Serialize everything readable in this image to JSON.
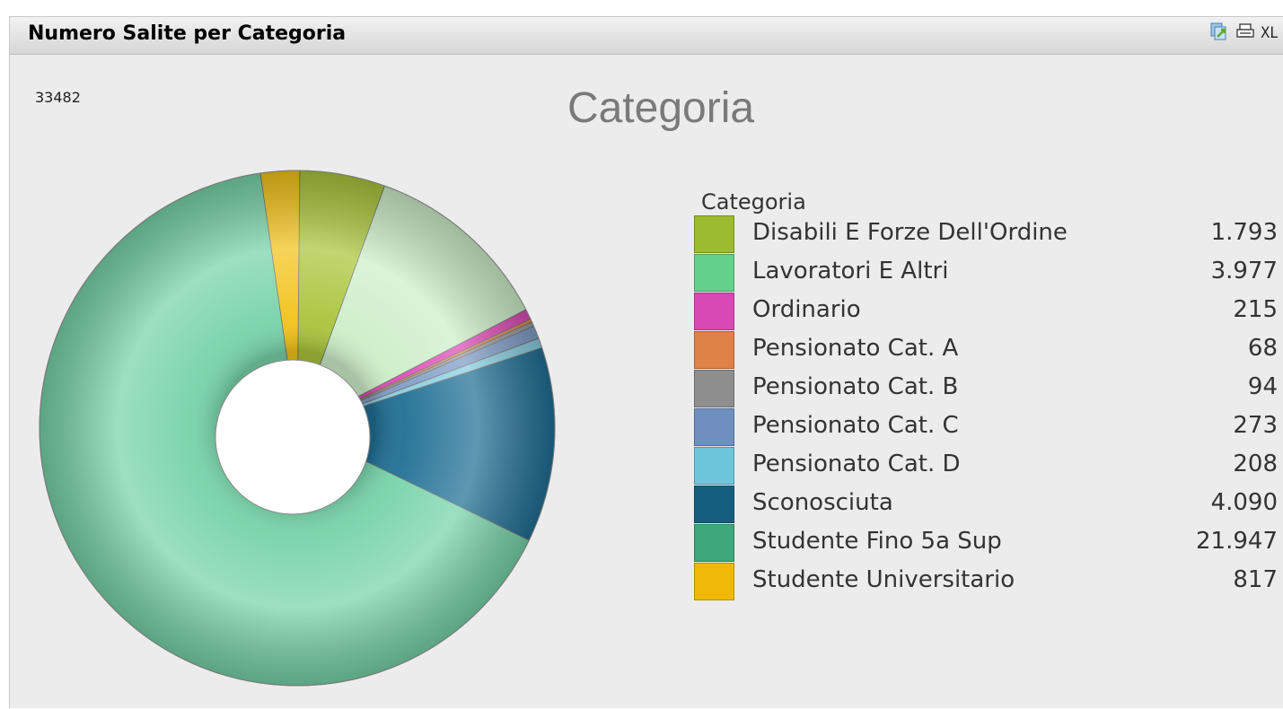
{
  "header": {
    "title": "Numero Salite per Categoria",
    "icons": [
      "restore-icon",
      "print-icon",
      "excel-export-icon"
    ],
    "xl_label": "XL"
  },
  "total_label": "33482",
  "chart_data": {
    "type": "pie",
    "title": "Categoria",
    "legend_title": "Categoria",
    "legend_position": "right",
    "categories": [
      "Disabili E Forze Dell'Ordine",
      "Lavoratori E Altri",
      "Ordinario",
      "Pensionato Cat. A",
      "Pensionato Cat. B",
      "Pensionato Cat. C",
      "Pensionato Cat. D",
      "Sconosciuta",
      "Studente Fino 5a Sup",
      "Studente Universitario"
    ],
    "values": [
      1793,
      3977,
      215,
      68,
      94,
      273,
      208,
      4090,
      21947,
      817
    ],
    "value_labels": [
      "1.793",
      "3.977",
      "215",
      "68",
      "94",
      "273",
      "208",
      "4.090",
      "21.947",
      "817"
    ],
    "colors": [
      "#a9c43a",
      "#cdeec8",
      "#dd4bb8",
      "#e08a52",
      "#9a9a9a",
      "#7f9cc6",
      "#88cde0",
      "#1f6f94",
      "#76d3a8",
      "#f2c31a"
    ],
    "legend_colors": [
      "#9dbb2e",
      "#63d18c",
      "#d949b5",
      "#df8247",
      "#8e8e8e",
      "#6f8fc0",
      "#6ec6dc",
      "#165e80",
      "#3fa77c",
      "#f0b90a"
    ]
  }
}
